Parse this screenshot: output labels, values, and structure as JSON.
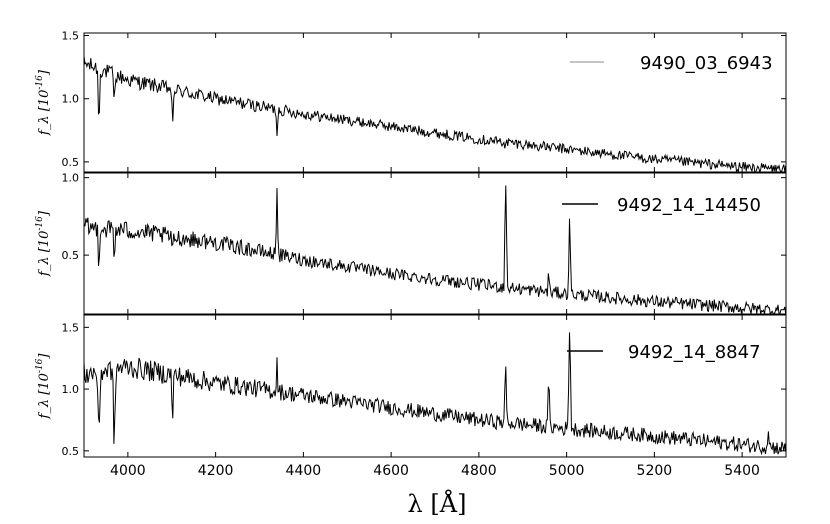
{
  "chart_data": [
    {
      "type": "line",
      "legend": "9490_03_6943",
      "legend_color": "#b0b0b0",
      "line_color": "#000000",
      "ylabel": "f_λ [10^-16]",
      "ylim": [
        0.42,
        1.52
      ],
      "yticks": [
        0.5,
        1.0,
        1.5
      ],
      "ytick_labels": [
        "0.5",
        "1.0",
        "1.5"
      ],
      "continuum": [
        [
          3900,
          1.28
        ],
        [
          4000,
          1.15
        ],
        [
          4200,
          1.0
        ],
        [
          4400,
          0.88
        ],
        [
          4600,
          0.78
        ],
        [
          4800,
          0.68
        ],
        [
          5000,
          0.6
        ],
        [
          5200,
          0.52
        ],
        [
          5400,
          0.46
        ],
        [
          5500,
          0.44
        ]
      ],
      "noise": 0.04,
      "features": [
        {
          "x": 3934,
          "y": 0.68,
          "w": 3
        },
        {
          "x": 3969,
          "y": 0.9,
          "w": 3
        },
        {
          "x": 4102,
          "y": 0.72,
          "w": 3
        },
        {
          "x": 4340,
          "y": 0.73,
          "w": 3
        },
        {
          "x": 4861,
          "y": 0.62,
          "w": 3
        }
      ]
    },
    {
      "type": "line",
      "legend": "9492_14_14450",
      "legend_color": "#000000",
      "line_color": "#000000",
      "ylabel": "f_λ [10^-16]",
      "ylim": [
        0.12,
        1.03
      ],
      "yticks": [
        0.5,
        1.0
      ],
      "ytick_labels": [
        "0.5",
        "1.0"
      ],
      "continuum": [
        [
          3900,
          0.68
        ],
        [
          4000,
          0.66
        ],
        [
          4200,
          0.58
        ],
        [
          4400,
          0.47
        ],
        [
          4600,
          0.38
        ],
        [
          4800,
          0.31
        ],
        [
          5000,
          0.25
        ],
        [
          5200,
          0.2
        ],
        [
          5400,
          0.16
        ],
        [
          5500,
          0.14
        ]
      ],
      "noise": 0.04,
      "features": [
        {
          "x": 3934,
          "y": 0.4,
          "w": 3
        },
        {
          "x": 3969,
          "y": 0.42,
          "w": 3
        },
        {
          "x": 4102,
          "y": 0.5,
          "w": 3
        },
        {
          "x": 4340,
          "y": 0.97,
          "w": 3
        },
        {
          "x": 4861,
          "y": 1.02,
          "w": 4
        },
        {
          "x": 4959,
          "y": 0.4,
          "w": 3
        },
        {
          "x": 5007,
          "y": 0.75,
          "w": 4
        }
      ]
    },
    {
      "type": "line",
      "legend": "9492_14_8847",
      "legend_color": "#000000",
      "line_color": "#000000",
      "ylabel": "f_λ [10^-16]",
      "ylim": [
        0.45,
        1.6
      ],
      "yticks": [
        0.5,
        1.0,
        1.5
      ],
      "ytick_labels": [
        "0.5",
        "1.0",
        "1.5"
      ],
      "continuum": [
        [
          3900,
          1.12
        ],
        [
          4000,
          1.18
        ],
        [
          4200,
          1.05
        ],
        [
          4400,
          0.95
        ],
        [
          4600,
          0.85
        ],
        [
          4800,
          0.75
        ],
        [
          5000,
          0.68
        ],
        [
          5200,
          0.62
        ],
        [
          5400,
          0.55
        ],
        [
          5500,
          0.52
        ]
      ],
      "noise": 0.06,
      "features": [
        {
          "x": 3934,
          "y": 0.52,
          "w": 4
        },
        {
          "x": 3969,
          "y": 0.47,
          "w": 4
        },
        {
          "x": 4102,
          "y": 0.72,
          "w": 3
        },
        {
          "x": 4340,
          "y": 1.22,
          "w": 3
        },
        {
          "x": 4861,
          "y": 1.28,
          "w": 3
        },
        {
          "x": 4959,
          "y": 1.18,
          "w": 3
        },
        {
          "x": 5007,
          "y": 1.6,
          "w": 4
        },
        {
          "x": 5460,
          "y": 0.72,
          "w": 3
        }
      ]
    }
  ],
  "x_axis": {
    "label": "λ [Å]",
    "xlim": [
      3900,
      5500
    ],
    "ticks": [
      4000,
      4200,
      4400,
      4600,
      4800,
      5000,
      5200,
      5400
    ],
    "tick_labels": [
      "4000",
      "4200",
      "4400",
      "4600",
      "4800",
      "5000",
      "5200",
      "5400"
    ]
  }
}
